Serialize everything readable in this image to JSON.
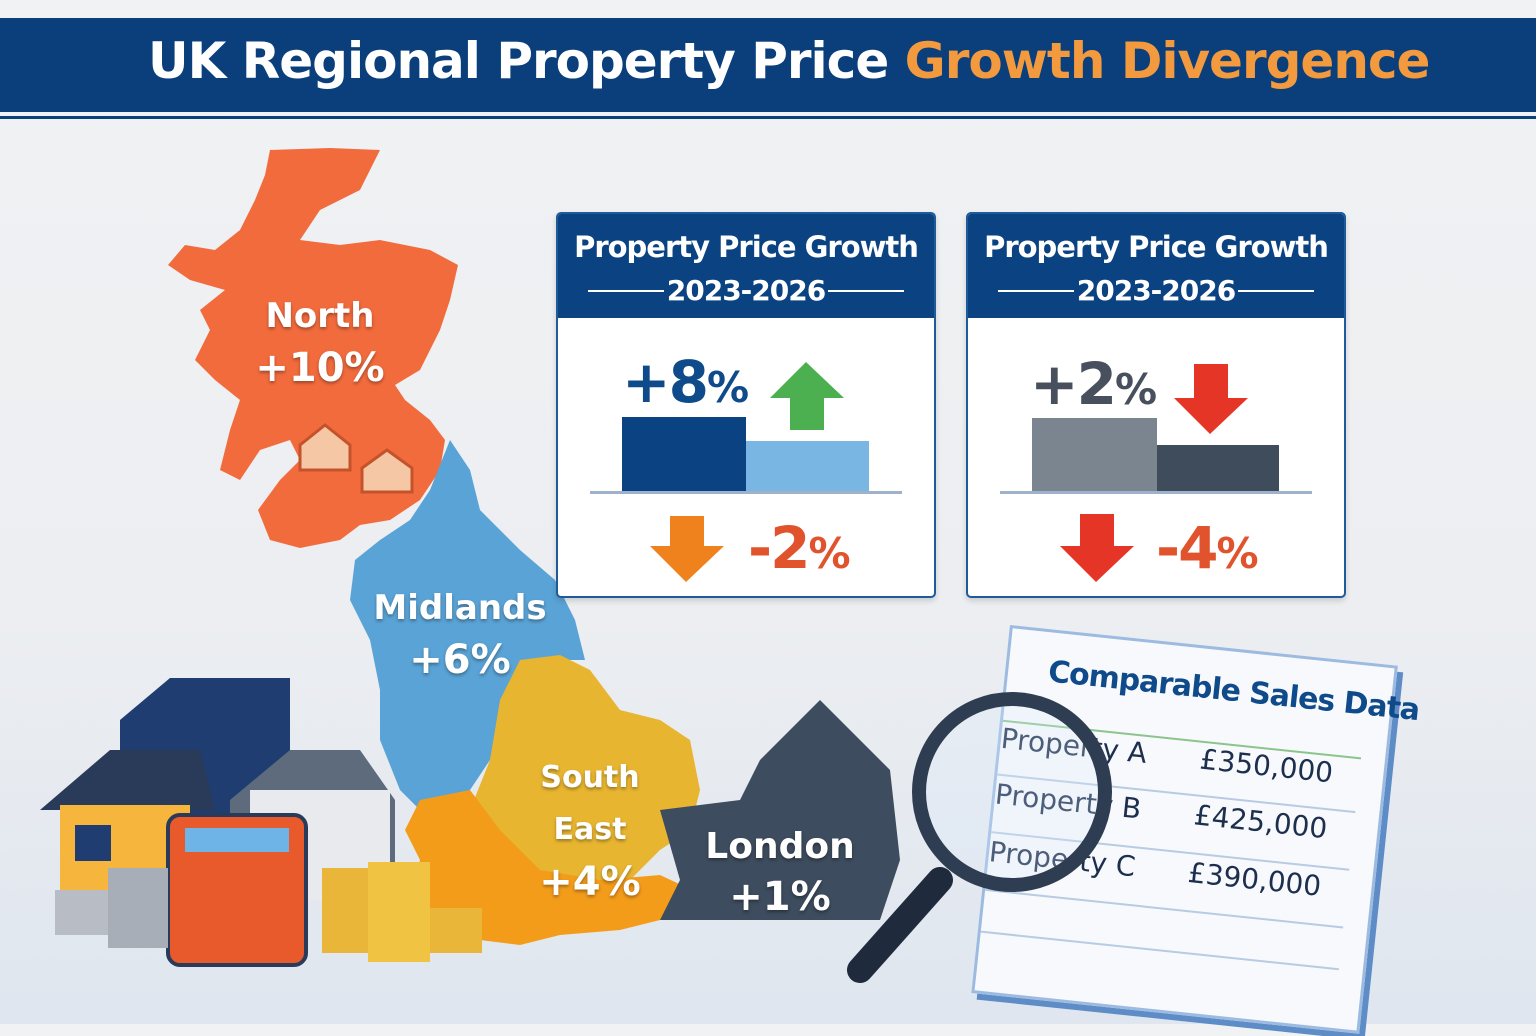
{
  "title": {
    "main": "UK Regional Property Price",
    "highlight": "Growth Divergence"
  },
  "colors": {
    "header": "#0b3f7c",
    "highlight": "#f39a3e",
    "north": "#f26b3d",
    "midlands": "#5aa3d6",
    "south_east": "#e8b530",
    "south_west": "#f39c1a",
    "london": "#3d4c5e",
    "up": "#4caf50",
    "down_red": "#e53527",
    "down_orange": "#f0821e"
  },
  "regions": [
    {
      "name": "North",
      "growth": "+10%"
    },
    {
      "name": "Midlands",
      "growth": "+6%"
    },
    {
      "name": "South East",
      "growth": "+4%"
    },
    {
      "name": "London",
      "growth": "+1%"
    }
  ],
  "cards": [
    {
      "title": "Property Price Growth",
      "period": "2023-2026",
      "up_value": "+8",
      "down_value": "-2",
      "unit": "%",
      "up_arrow": "arrow-up-green",
      "down_arrow": "arrow-down-orange"
    },
    {
      "title": "Property Price Growth",
      "period": "2023-2026",
      "up_value": "+2",
      "down_value": "-4",
      "unit": "%",
      "up_arrow": "arrow-down-red",
      "down_arrow": "arrow-down-red"
    }
  ],
  "comparable": {
    "title": "Comparable Sales Data",
    "rows": [
      {
        "name": "Property A",
        "price": "£350,000"
      },
      {
        "name": "Property B",
        "price": "£425,000"
      },
      {
        "name": "Property C",
        "price": "£390,000"
      }
    ]
  }
}
